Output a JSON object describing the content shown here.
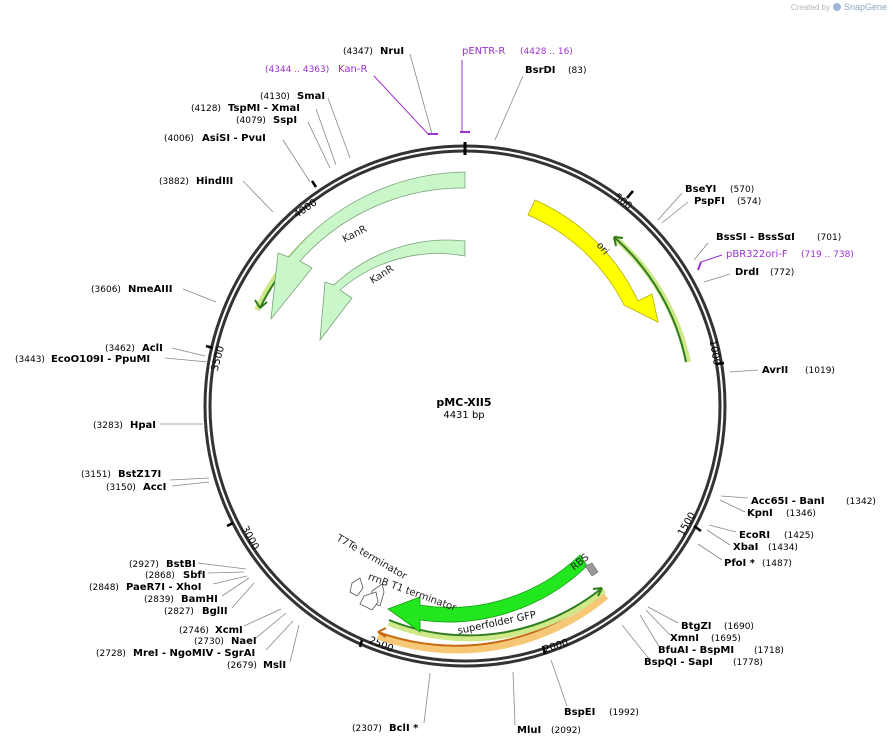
{
  "branding": {
    "created_by": "Created by",
    "brand": "SnapGene"
  },
  "plasmid": {
    "name": "pMC-XII5",
    "length": "4431 bp",
    "total_bp": 4431
  },
  "ticks": [
    {
      "label": "500",
      "bp": 500
    },
    {
      "label": "1000",
      "bp": 1000
    },
    {
      "label": "1500",
      "bp": 1500
    },
    {
      "label": "2000",
      "bp": 2000
    },
    {
      "label": "2500",
      "bp": 2500
    },
    {
      "label": "3000",
      "bp": 3000
    },
    {
      "label": "3500",
      "bp": 3500
    },
    {
      "label": "4000",
      "bp": 4000
    }
  ],
  "features": [
    {
      "name": "KanR",
      "bp_start": 3300,
      "bp_end": 4200,
      "color": "#c9f7c9",
      "style": "outer-arrow"
    },
    {
      "name": "KanR",
      "bp_start": 3450,
      "bp_end": 4430,
      "color": "#c9f7c9",
      "style": "inner-arrow"
    },
    {
      "name": "ori",
      "bp_start": 200,
      "bp_end": 800,
      "color": "#ffff00",
      "style": "arrow"
    },
    {
      "name": "superfolder GFP",
      "bp_start": 1880,
      "bp_end": 2580,
      "color": "#22e61e",
      "style": "arrow-reverse"
    },
    {
      "name": "RBS",
      "bp_start": 1860,
      "bp_end": 1885,
      "color": "#999999",
      "style": "block"
    },
    {
      "name": "rrnB T1 terminator",
      "bp_start": 2610,
      "bp_end": 2650,
      "color": "#ffffff",
      "style": "terminator"
    },
    {
      "name": "T7Te terminator",
      "bp_start": 2680,
      "bp_end": 2700,
      "color": "#ffffff",
      "style": "terminator"
    }
  ],
  "primers": [
    {
      "name": "pENTR-R",
      "range": "(4428 .. 16)",
      "color": "#9b30d0"
    },
    {
      "name": "Kan-R",
      "range": "(4344 .. 4363)",
      "color": "#9b30d0"
    },
    {
      "name": "pBR322ori-F",
      "range": "(719 .. 738)",
      "color": "#9b30d0"
    }
  ],
  "sites": [
    {
      "label": "BsrDI",
      "pos": "(83)"
    },
    {
      "label": "BseYI",
      "pos": "(570)"
    },
    {
      "label": "PspFI",
      "pos": "(574)"
    },
    {
      "label": "BssSI - BssSαI",
      "pos": "(701)"
    },
    {
      "label": "DrdI",
      "pos": "(772)"
    },
    {
      "label": "AvrII",
      "pos": "(1019)"
    },
    {
      "label": "Acc65I - BanI",
      "pos": "(1342)"
    },
    {
      "label": "KpnI",
      "pos": "(1346)"
    },
    {
      "label": "EcoRI",
      "pos": "(1425)"
    },
    {
      "label": "XbaI",
      "pos": "(1434)"
    },
    {
      "label": "PfoI *",
      "pos": "(1487)"
    },
    {
      "label": "BtgZI",
      "pos": "(1690)"
    },
    {
      "label": "XmnI",
      "pos": "(1695)"
    },
    {
      "label": "BfuAI - BspMI",
      "pos": "(1718)"
    },
    {
      "label": "BspQI - SapI",
      "pos": "(1778)"
    },
    {
      "label": "BspEI",
      "pos": "(1992)"
    },
    {
      "label": "MluI",
      "pos": "(2092)"
    },
    {
      "label": "BclI *",
      "pos": "(2307)"
    },
    {
      "label": "MslI",
      "pos": "(2679)"
    },
    {
      "label": "MreI - NgoMIV - SgrAI",
      "pos": "(2728)"
    },
    {
      "label": "NaeI",
      "pos": "(2730)"
    },
    {
      "label": "XcmI",
      "pos": "(2746)"
    },
    {
      "label": "BglII",
      "pos": "(2827)"
    },
    {
      "label": "BamHI",
      "pos": "(2839)"
    },
    {
      "label": "PaeR7I - XhoI",
      "pos": "(2848)"
    },
    {
      "label": "SbfI",
      "pos": "(2868)"
    },
    {
      "label": "BstBI",
      "pos": "(2927)"
    },
    {
      "label": "AccI",
      "pos": "(3150)"
    },
    {
      "label": "BstZ17I",
      "pos": "(3151)"
    },
    {
      "label": "HpaI",
      "pos": "(3283)"
    },
    {
      "label": "EcoO109I - PpuMI",
      "pos": "(3443)"
    },
    {
      "label": "AclI",
      "pos": "(3462)"
    },
    {
      "label": "NmeAIII",
      "pos": "(3606)"
    },
    {
      "label": "HindIII",
      "pos": "(3882)"
    },
    {
      "label": "AsiSI - PvuI",
      "pos": "(4006)"
    },
    {
      "label": "SspI",
      "pos": "(4079)"
    },
    {
      "label": "TspMI - XmaI",
      "pos": "(4128)"
    },
    {
      "label": "SmaI",
      "pos": "(4130)"
    },
    {
      "label": "NruI",
      "pos": "(4347)"
    }
  ]
}
